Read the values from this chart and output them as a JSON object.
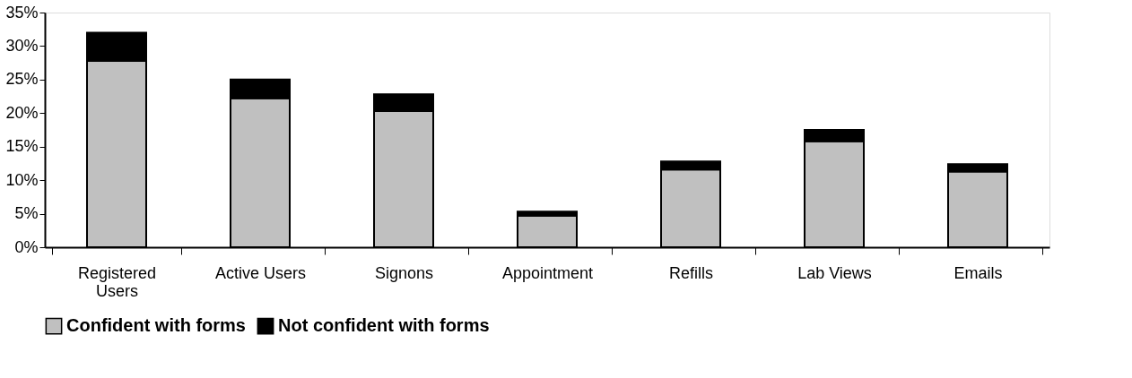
{
  "chart_data": {
    "type": "bar",
    "stacked": true,
    "categories": [
      "Registered Users",
      "Active Users",
      "Signons",
      "Appointment",
      "Refills",
      "Lab Views",
      "Emails"
    ],
    "series": [
      {
        "name": "Confident with forms",
        "color": "#c0c0c0",
        "values": [
          27.8,
          22.2,
          20.3,
          4.7,
          11.6,
          15.8,
          11.3
        ]
      },
      {
        "name": "Not confident with forms",
        "color": "#000000",
        "values": [
          4.2,
          2.8,
          2.5,
          0.6,
          1.2,
          1.7,
          1.1
        ]
      }
    ],
    "ylim": [
      0,
      35
    ],
    "yticks": [
      {
        "value": 0,
        "label": "0%"
      },
      {
        "value": 5,
        "label": "5%"
      },
      {
        "value": 10,
        "label": "10%"
      },
      {
        "value": 15,
        "label": "15%"
      },
      {
        "value": 20,
        "label": "20%"
      },
      {
        "value": 25,
        "label": "25%"
      },
      {
        "value": 30,
        "label": "30%"
      },
      {
        "value": 35,
        "label": "35%"
      }
    ],
    "grid": false,
    "legend": "bottom"
  }
}
